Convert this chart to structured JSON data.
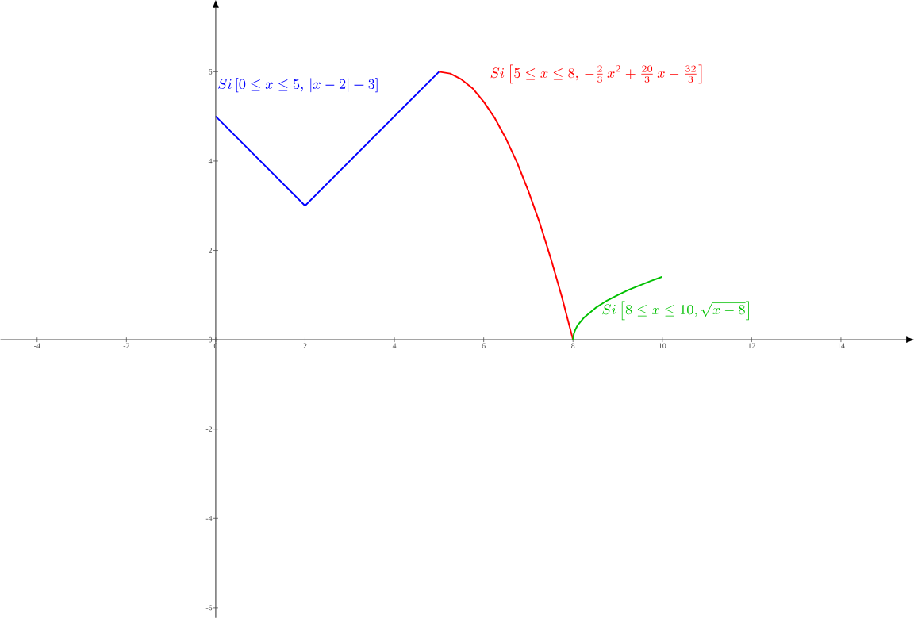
{
  "chart_data": {
    "type": "line",
    "xlim": [
      -4.82,
      15.46
    ],
    "ylim": [
      -6.23,
      7.43
    ],
    "xticks": [
      -4,
      -2,
      0,
      2,
      4,
      6,
      8,
      10,
      12,
      14
    ],
    "yticks": [
      -6,
      -4,
      -2,
      0,
      2,
      4,
      6
    ],
    "legend": false,
    "marker": "none",
    "line_style": "solid",
    "series": [
      {
        "name": "Si\\left[0 \\le x \\le 5,\\, |x-2|+3\\right]",
        "color": "#0000ff",
        "x": [
          0,
          2,
          5
        ],
        "values": [
          5,
          3,
          6
        ]
      },
      {
        "name": "Si\\left[5 \\le x \\le 8,\\, -\\frac{2}{3}\\,x^2+\\frac{20}{3}\\,x-\\frac{32}{3}\\right]",
        "color": "#ff0000",
        "x": [
          5,
          5.25,
          5.5,
          5.75,
          6,
          6.25,
          6.5,
          6.75,
          7,
          7.25,
          7.5,
          7.75,
          8
        ],
        "values": [
          6,
          5.96,
          5.83,
          5.63,
          5.33,
          4.96,
          4.5,
          3.96,
          3.33,
          2.63,
          1.83,
          0.96,
          0
        ]
      },
      {
        "name": "Si\\left[8 \\le x \\le 10, \\sqrt{x-8}\\right]",
        "color": "#00c000",
        "x": [
          8,
          8.02,
          8.05,
          8.1,
          8.25,
          8.5,
          8.75,
          9,
          9.25,
          9.5,
          9.75,
          10
        ],
        "values": [
          0,
          0.14,
          0.22,
          0.32,
          0.5,
          0.71,
          0.87,
          1,
          1.12,
          1.22,
          1.32,
          1.41
        ]
      }
    ]
  }
}
